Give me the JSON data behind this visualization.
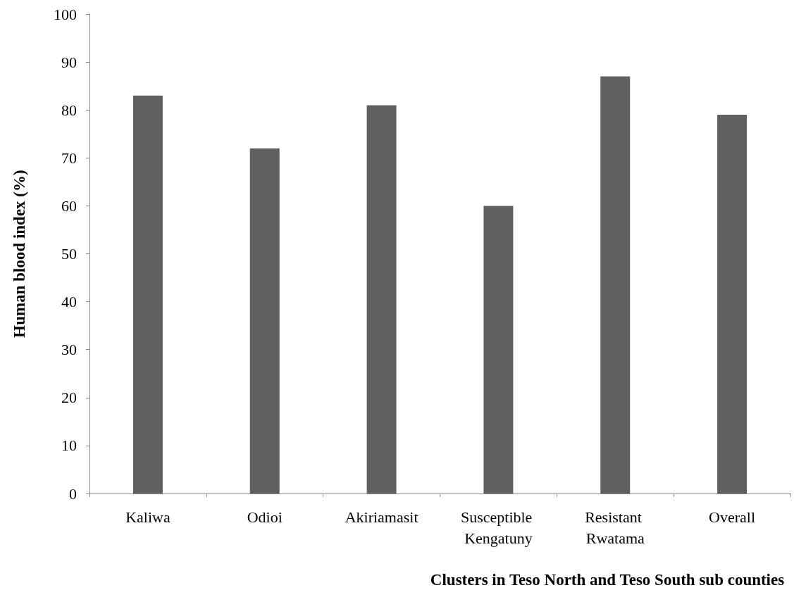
{
  "chart_data": {
    "type": "bar",
    "xlabel": "Clusters in Teso North and Teso South sub counties",
    "ylabel": "Human blood index (%)",
    "categories": [
      "Kaliwa",
      "Odioi",
      "Akiriamasit",
      "Susceptible Kengatuny",
      "Resistant Rwatama",
      "Overall"
    ],
    "values": [
      83,
      72,
      81,
      60,
      87,
      79
    ],
    "color": "#606060",
    "ylim": [
      0,
      100
    ],
    "yticks": [
      0,
      10,
      20,
      30,
      40,
      50,
      60,
      70,
      80,
      90,
      100
    ],
    "grid": false
  }
}
